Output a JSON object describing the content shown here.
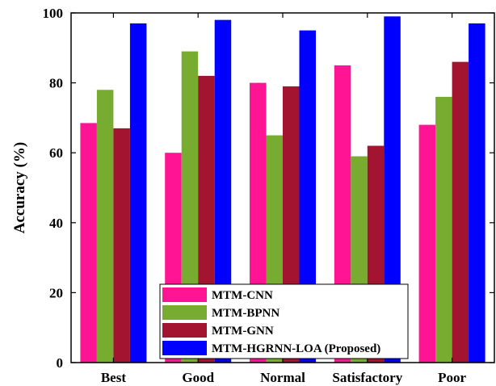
{
  "chart_data": {
    "type": "bar",
    "title": "",
    "xlabel": "",
    "ylabel": "Accuracy (%)",
    "ylim": [
      0,
      100
    ],
    "yticks": [
      0,
      20,
      40,
      60,
      80,
      100
    ],
    "categories": [
      "Best",
      "Good",
      "Normal",
      "Satisfactory",
      "Poor"
    ],
    "series": [
      {
        "name": "MTM-CNN",
        "color": "#ff1493",
        "values": [
          68.5,
          60,
          80,
          85,
          68
        ]
      },
      {
        "name": "MTM-BPNN",
        "color": "#77ac30",
        "values": [
          78,
          89,
          65,
          59,
          76
        ]
      },
      {
        "name": "MTM-GNN",
        "color": "#a2142f",
        "values": [
          67,
          82,
          79,
          62,
          86
        ]
      },
      {
        "name": "MTM-HGRNN-LOA (Proposed)",
        "color": "#0000ff",
        "values": [
          97,
          98,
          95,
          99,
          97
        ]
      }
    ],
    "legend_position": "bottom-center",
    "grid": false
  }
}
